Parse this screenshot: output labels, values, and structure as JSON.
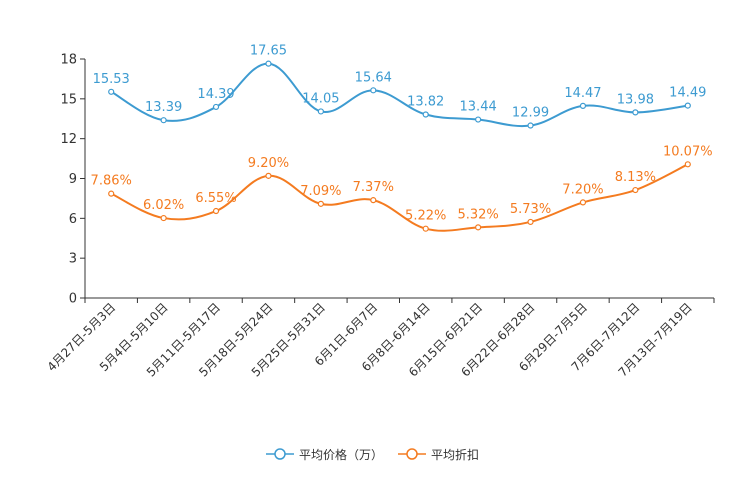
{
  "chart_data": {
    "type": "line",
    "categories": [
      "4月27日-5月3日",
      "5月4日-5月10日",
      "5月11日-5月17日",
      "5月18日-5月24日",
      "5月25日-5月31日",
      "6月1日-6月7日",
      "6月8日-6月14日",
      "6月15日-6月21日",
      "6月22日-6月28日",
      "6月29日-7月5日",
      "7月6日-7月12日",
      "7月13日-7月19日"
    ],
    "ylim": [
      0,
      18
    ],
    "yticks": [
      "0",
      "3",
      "6",
      "9",
      "12",
      "15",
      "18"
    ],
    "series": [
      {
        "name": "平均价格（万）",
        "color": "#3d9bd1",
        "values": [
          15.53,
          13.39,
          14.39,
          17.65,
          14.05,
          15.64,
          13.82,
          13.44,
          12.99,
          14.47,
          13.98,
          14.49
        ],
        "labels": [
          "15.53",
          "13.39",
          "14.39",
          "17.65",
          "14.05",
          "15.64",
          "13.82",
          "13.44",
          "12.99",
          "14.47",
          "13.98",
          "14.49"
        ]
      },
      {
        "name": "平均折扣",
        "color": "#f47b20",
        "values": [
          7.86,
          6.02,
          6.55,
          9.2,
          7.09,
          7.37,
          5.22,
          5.32,
          5.73,
          7.2,
          8.13,
          10.07
        ],
        "labels": [
          "7.86%",
          "6.02%",
          "6.55%",
          "9.20%",
          "7.09%",
          "7.37%",
          "5.22%",
          "5.32%",
          "5.73%",
          "7.20%",
          "8.13%",
          "10.07%"
        ]
      }
    ]
  }
}
